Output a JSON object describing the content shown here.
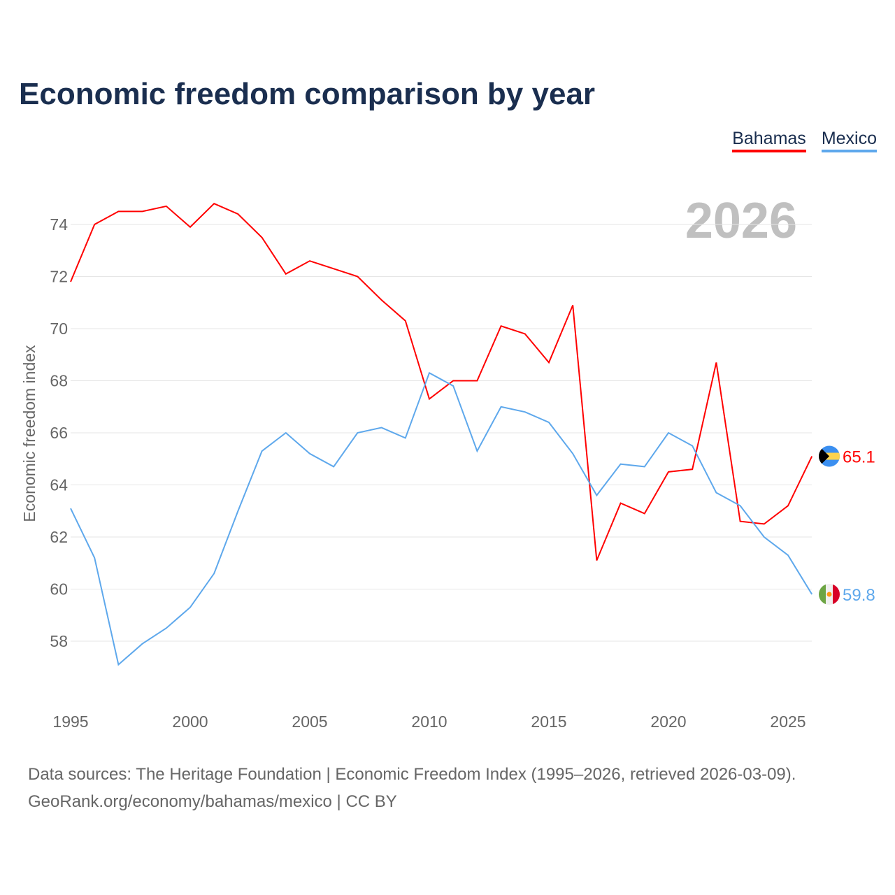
{
  "chart_data": {
    "type": "line",
    "title": "Economic freedom comparison by year",
    "xlabel": "",
    "ylabel": "Economic freedom index",
    "watermark_year": "2026",
    "xlim": [
      1995,
      2026
    ],
    "ylim": [
      56,
      75
    ],
    "x_ticks": [
      1995,
      2000,
      2005,
      2010,
      2015,
      2020,
      2025
    ],
    "y_ticks": [
      58,
      60,
      62,
      64,
      66,
      68,
      70,
      72,
      74
    ],
    "grid": true,
    "legend_position": "top-right",
    "x": [
      1995,
      1996,
      1997,
      1998,
      1999,
      2000,
      2001,
      2002,
      2003,
      2004,
      2005,
      2006,
      2007,
      2008,
      2009,
      2010,
      2011,
      2012,
      2013,
      2014,
      2015,
      2016,
      2017,
      2018,
      2019,
      2020,
      2021,
      2022,
      2023,
      2024,
      2025,
      2026
    ],
    "series": [
      {
        "name": "Bahamas",
        "color": "#ff0000",
        "end_label": "65.1",
        "values": [
          71.8,
          74.0,
          74.5,
          74.5,
          74.7,
          73.9,
          74.8,
          74.4,
          73.5,
          72.1,
          72.6,
          72.3,
          72.0,
          71.1,
          70.3,
          67.3,
          68.0,
          68.0,
          70.1,
          69.8,
          68.7,
          70.9,
          61.1,
          63.3,
          62.9,
          64.5,
          64.6,
          68.7,
          62.6,
          62.5,
          63.2,
          65.1
        ]
      },
      {
        "name": "Mexico",
        "color": "#5ea8ec",
        "end_label": "59.8",
        "values": [
          63.1,
          61.2,
          57.1,
          57.9,
          58.5,
          59.3,
          60.6,
          63.0,
          65.3,
          66.0,
          65.2,
          64.7,
          66.0,
          66.2,
          65.8,
          68.3,
          67.8,
          65.3,
          67.0,
          66.8,
          66.4,
          65.2,
          63.6,
          64.8,
          64.7,
          66.0,
          65.5,
          63.7,
          63.2,
          62.0,
          61.3,
          59.8
        ]
      }
    ]
  },
  "footer": {
    "line1": "Data sources: The Heritage Foundation | Economic Freedom Index (1995–2026, retrieved 2026-03-09).",
    "line2": "GeoRank.org/economy/bahamas/mexico | CC BY"
  }
}
